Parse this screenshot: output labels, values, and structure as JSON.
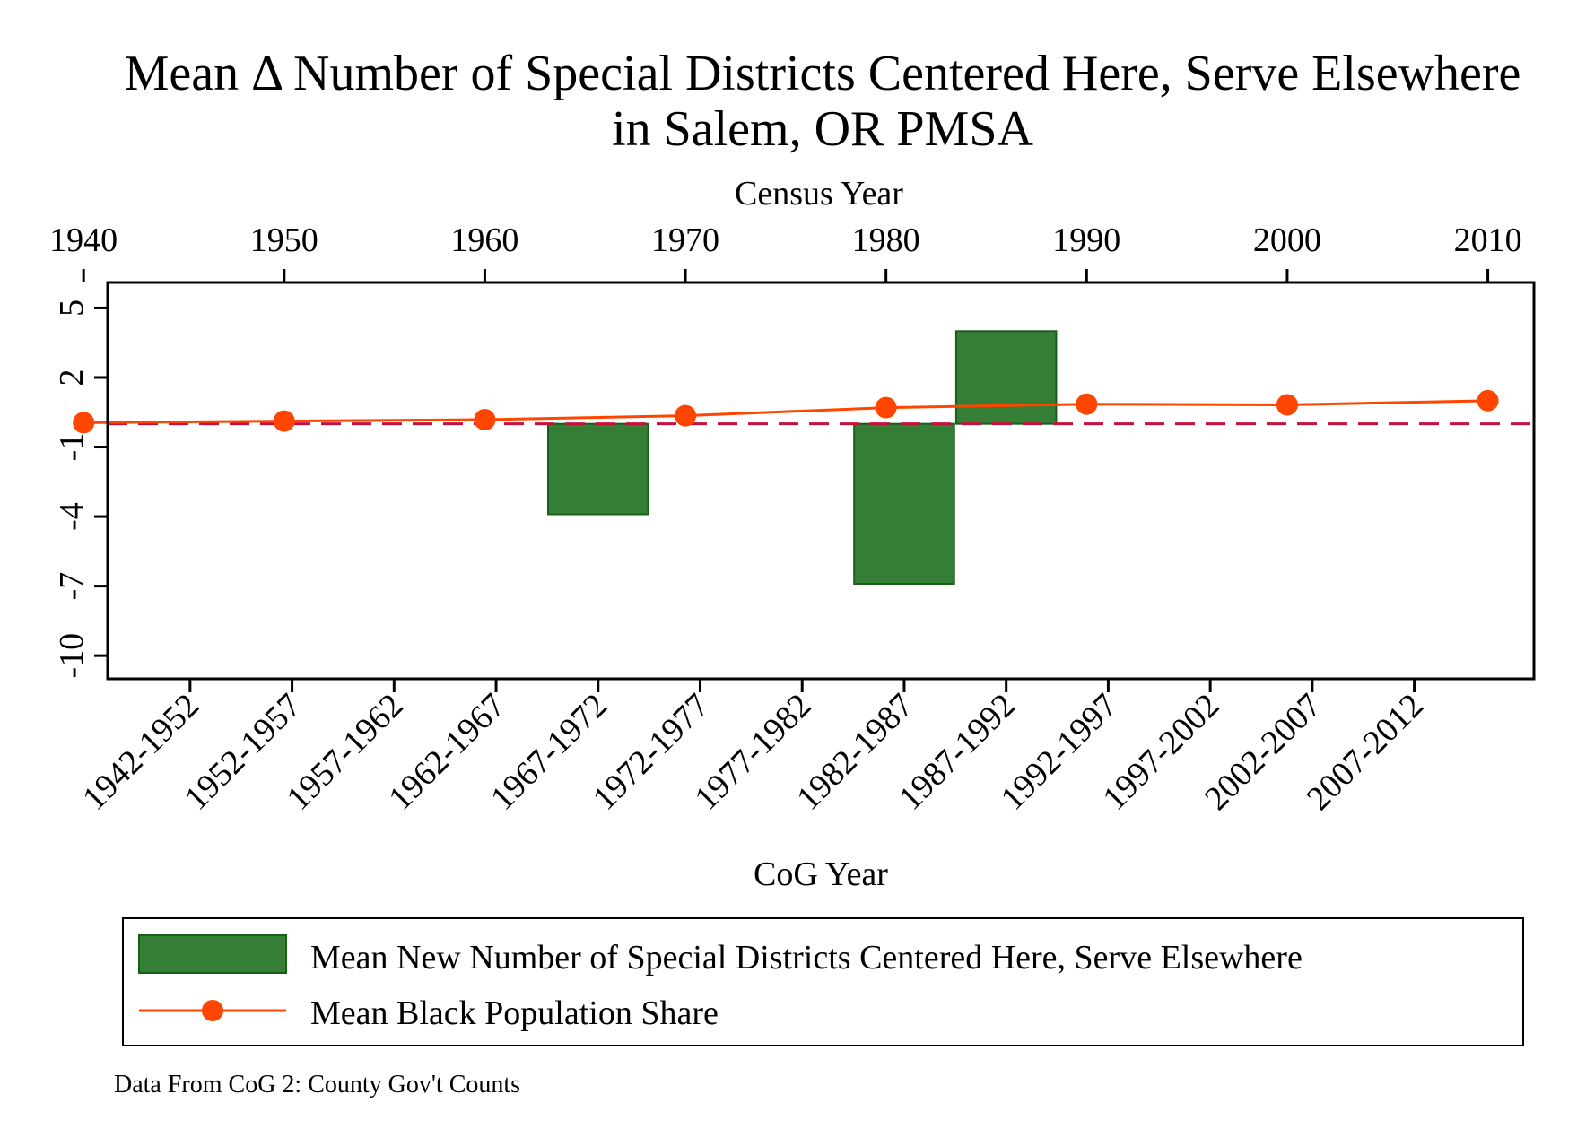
{
  "chart_data": {
    "type": "bar",
    "title_line1": "Mean Δ Number of Special Districts Centered Here, Serve Elsewhere",
    "title_line2": "in Salem, OR PMSA",
    "xlabel_top": "Census Year",
    "xlabel_bottom": "CoG Year",
    "note": "Data From CoG 2: County Gov't Counts",
    "y_ticks": [
      "5",
      "2",
      "-1",
      "-4",
      "-7",
      "-10"
    ],
    "y_tick_values": [
      5,
      2,
      -1,
      -4,
      -7,
      -10
    ],
    "ylim": [
      -11,
      6.1
    ],
    "top_axis": {
      "ticks": [
        "1940",
        "1950",
        "1960",
        "1970",
        "1980",
        "1990",
        "2000",
        "2010"
      ],
      "tick_values": [
        1940,
        1950,
        1960,
        1970,
        1980,
        1990,
        2000,
        2010
      ],
      "xlim": [
        1941.2,
        2012.3
      ]
    },
    "bottom_axis": {
      "categories": [
        "1942-1952",
        "1952-1957",
        "1957-1962",
        "1962-1967",
        "1967-1972",
        "1972-1977",
        "1977-1982",
        "1982-1987",
        "1987-1992",
        "1992-1997",
        "1997-2002",
        "2002-2007",
        "2007-2012"
      ],
      "tick_positions": [
        1943.0,
        1948.2,
        1953.4,
        1958.6,
        1963.8,
        1969.0,
        1974.2,
        1979.4,
        1984.6,
        1989.8,
        1995.0,
        2000.2,
        2005.4
      ],
      "xlim": [
        1938.8,
        2011.5
      ]
    },
    "series": [
      {
        "name": "Mean New Number of Special Districts Centered Here, Serve Elsewhere",
        "type": "bar",
        "color": "#357e35",
        "edge_color": "#1b5e1b",
        "bars": [
          {
            "category": "1967-1972",
            "value": -3.9
          },
          {
            "category": "1982-1987",
            "value": -6.9
          },
          {
            "category": "1987-1992",
            "value": 4.0
          }
        ],
        "bar_width": 5.1
      },
      {
        "name": "Mean Black Population Share",
        "type": "line",
        "color": "#ff4500",
        "x": [
          1940,
          1950,
          1960,
          1970,
          1980,
          1990,
          2000,
          2010
        ],
        "y": [
          0.05,
          0.12,
          0.18,
          0.35,
          0.7,
          0.85,
          0.82,
          1.0
        ]
      }
    ],
    "reference_line": {
      "y": 0,
      "color": "#c8103c",
      "style": "dashed"
    }
  }
}
